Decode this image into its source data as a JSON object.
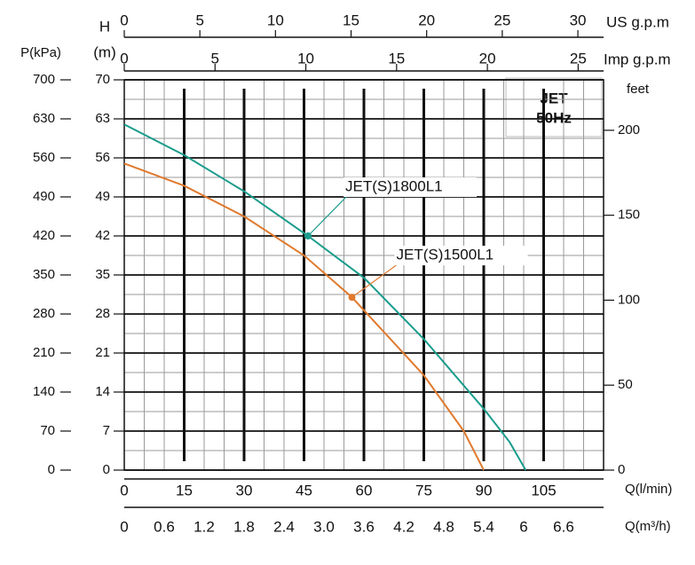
{
  "chart_data": {
    "type": "line",
    "xlabel": "Q(l/min)",
    "xlim": [
      0,
      120
    ],
    "xticks": [
      0,
      15,
      30,
      45,
      60,
      75,
      90,
      105
    ],
    "ylabel": "H",
    "ylabel_unit": "(m)",
    "ylim": [
      0,
      70
    ],
    "yticks": [
      0,
      7,
      14,
      21,
      28,
      35,
      42,
      49,
      56,
      63,
      70
    ],
    "pressure_axis": {
      "label": "P(kPa)",
      "lim": [
        0,
        700
      ],
      "ticks": [
        0,
        70,
        140,
        210,
        280,
        350,
        420,
        490,
        560,
        630,
        700
      ]
    },
    "feet_axis": {
      "label": "feet",
      "lim": [
        0,
        229.7
      ],
      "ticks": [
        0,
        50,
        100,
        150,
        200
      ]
    },
    "us_gpm_axis": {
      "label": "US g.p.m",
      "lim": [
        0,
        31.7
      ],
      "ticks": [
        0,
        5,
        10,
        15,
        20,
        25,
        30
      ]
    },
    "imp_gpm_axis": {
      "label": "Imp g.p.m",
      "lim": [
        0,
        26.4
      ],
      "ticks": [
        0,
        5,
        10,
        15,
        20,
        25
      ]
    },
    "m3h_axis": {
      "label": "Q(m³/h)",
      "lim": [
        0,
        7.2
      ],
      "ticks": [
        0,
        0.6,
        1.2,
        1.8,
        2.4,
        {
          "value": 3,
          "label": "3.0"
        },
        3.6,
        4.2,
        4.8,
        5.4,
        6,
        6.6
      ]
    },
    "box_title": "JET",
    "box_subtitle": "50Hz",
    "grid": true,
    "series": [
      {
        "name": "JET(S)1800L1",
        "color": "#1a9c8c",
        "x": [
          0,
          15,
          30,
          46,
          60,
          75,
          90,
          96.5,
          100.5
        ],
        "values": [
          62,
          56.5,
          50,
          42,
          34.5,
          23.5,
          11,
          5,
          0
        ],
        "marker": [
          46,
          42
        ]
      },
      {
        "name": "JET(S)1500L1",
        "color": "#e07a2e",
        "x": [
          0,
          15,
          30,
          45,
          57,
          75,
          85,
          90
        ],
        "values": [
          55,
          51,
          45.5,
          38.5,
          31,
          17,
          7,
          0
        ],
        "marker": [
          57,
          31
        ]
      }
    ]
  }
}
